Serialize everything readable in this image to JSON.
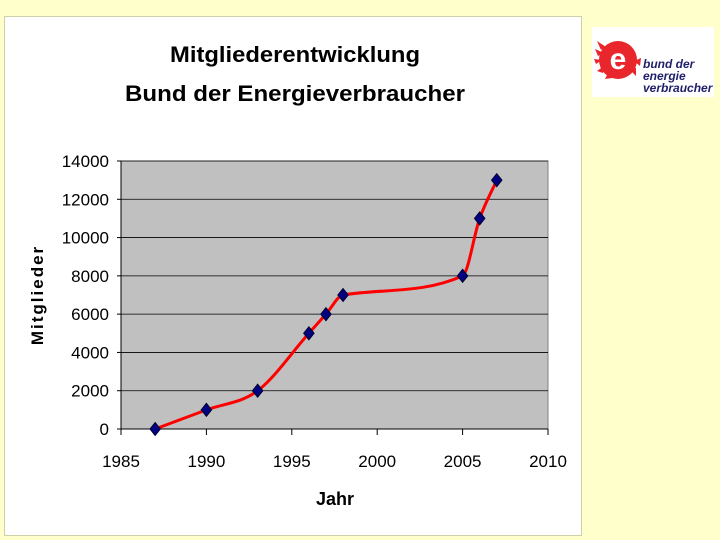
{
  "chart_data": {
    "type": "line",
    "title": [
      "Mitgliederentwicklung",
      "Bund der Energieverbraucher"
    ],
    "xlabel": "Jahr",
    "ylabel": "Mitglieder",
    "xlim": [
      1985,
      2010
    ],
    "ylim": [
      0,
      14000
    ],
    "x_ticks": [
      1985,
      1990,
      1995,
      2000,
      2005,
      2010
    ],
    "y_ticks": [
      0,
      2000,
      4000,
      6000,
      8000,
      10000,
      12000,
      14000
    ],
    "grid": "horizontal",
    "series": [
      {
        "x": [
          1987,
          1990,
          1993,
          1996,
          1997,
          1998,
          2005,
          2006,
          2007
        ],
        "y": [
          0,
          1000,
          2000,
          5000,
          6000,
          7000,
          8000,
          11000,
          13000
        ]
      }
    ],
    "colors": {
      "plot_background": "#c0c0c0",
      "line": "#ff0000",
      "marker": "#000080",
      "gridline": "#000000"
    }
  },
  "logo": {
    "lines": [
      "bund der",
      "energie",
      "verbraucher"
    ],
    "emblem_letter": "e",
    "color": "#e8262b"
  }
}
